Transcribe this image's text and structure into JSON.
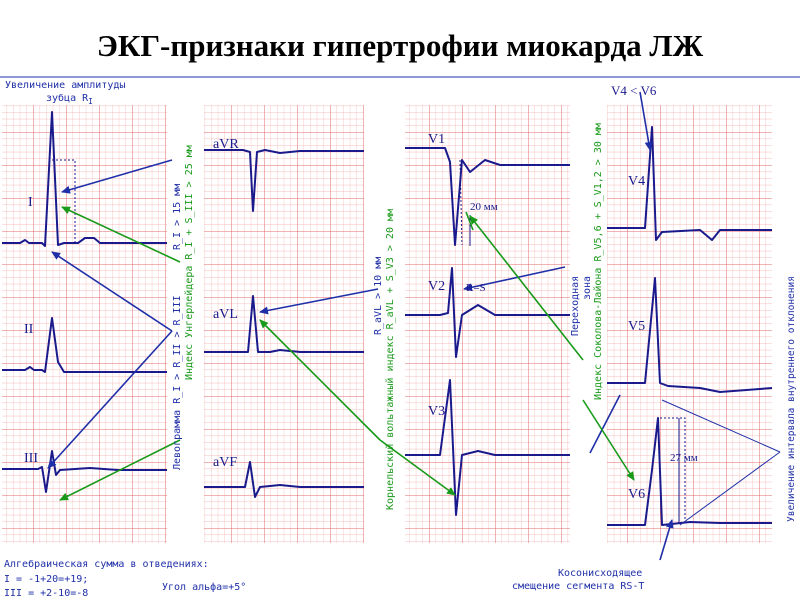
{
  "title": "ЭКГ-признаки гипертрофии миокарда ЛЖ",
  "colors": {
    "grid": "#f08a8a",
    "trace": "#1a1a8c",
    "blue_note": "#1f2fa8",
    "green_note": "#1a9a1a"
  },
  "lead_labels": {
    "I": "I",
    "II": "II",
    "III": "III",
    "aVR": "aVR",
    "aVL": "aVL",
    "aVF": "aVF",
    "V1": "V1",
    "V2": "V2",
    "V3": "V3",
    "V4": "V4",
    "V5": "V5",
    "V6": "V6"
  },
  "annotations": {
    "amp_r1_line1": "Увеличение амплитуды",
    "amp_r1_line2": "зубца R",
    "amp_r1_sub": "I",
    "r1_gt_15": "R_I > 15 мм",
    "index_ungerleider": "Индекс Унгерлейдера  R_I + S_III > 25 мм",
    "levogramma": "Левограмма  R_I > R_II > R_III",
    "ravl_gt_10": "R_aVL > 10 мм",
    "cornell_index": "Корнельский вольтажный индекс  R_aVL + S_V3 > 20 мм",
    "transition_zone_1": "Переходная",
    "transition_zone_2": "зона",
    "sokolow_index": "Индекс Соколова-Лайона  R_V5,6 + S_V1,2 > 30 мм",
    "v1_20mm": "20 мм",
    "r_eq_s": "R=S",
    "v6_27mm": "27 мм",
    "v4_lt_v6": "V4 < V6",
    "intrinsicoid": "Увеличение интервала внутреннего отклонения",
    "st_line1": "Косонисходящее",
    "st_line2": "смещение сегмента RS-T",
    "alg_sum": "Алгебраическая сумма в отведениях:",
    "lead_I_sum": "I = -1+20=+19;",
    "lead_III_sum": "III = +2-10=-8",
    "alpha": "Угол альфа=+5°"
  }
}
